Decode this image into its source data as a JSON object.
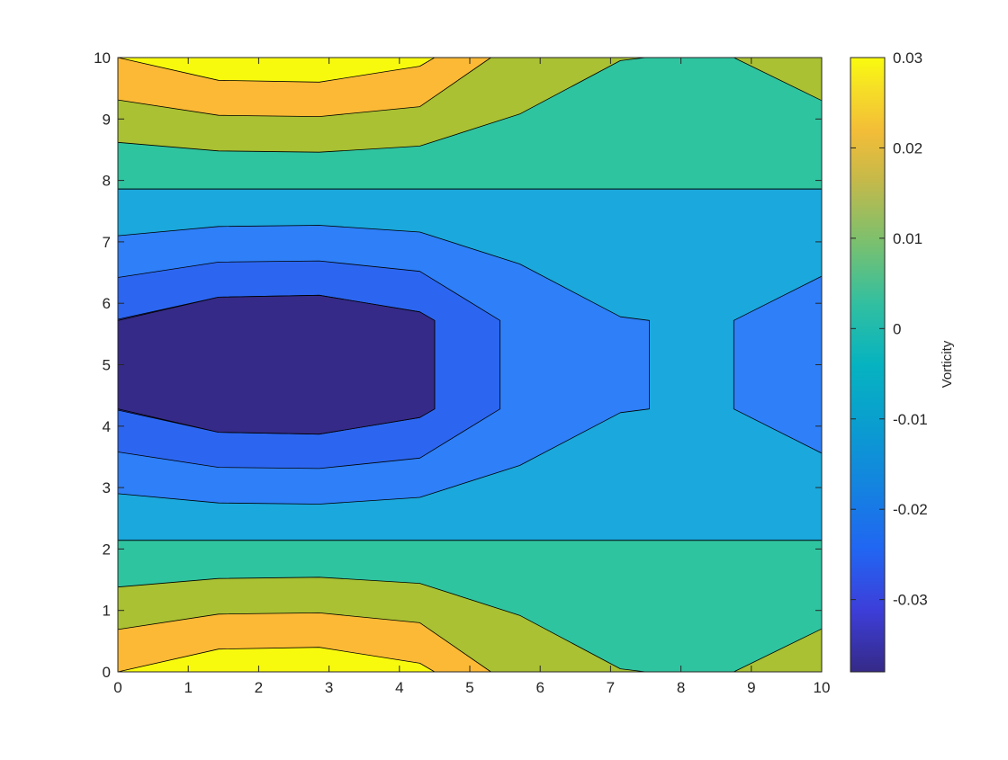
{
  "chart_data": {
    "type": "contourf",
    "title": "",
    "xlabel": "",
    "ylabel": "",
    "xlim": [
      0,
      10
    ],
    "ylim": [
      0,
      10
    ],
    "x_ticks": [
      "0",
      "1",
      "2",
      "3",
      "4",
      "5",
      "6",
      "7",
      "8",
      "9",
      "10"
    ],
    "y_ticks": [
      "0",
      "1",
      "2",
      "3",
      "4",
      "5",
      "6",
      "7",
      "8",
      "9",
      "10"
    ],
    "grid": false,
    "colorbar": {
      "label": "Vorticity",
      "range": [
        -0.038,
        0.03
      ],
      "ticks": [
        {
          "value": 0.03,
          "label": "0.03"
        },
        {
          "value": 0.02,
          "label": "0.02"
        },
        {
          "value": 0.01,
          "label": "0.01"
        },
        {
          "value": 0,
          "label": "0"
        },
        {
          "value": -0.01,
          "label": "-0.01"
        },
        {
          "value": -0.02,
          "label": "-0.02"
        },
        {
          "value": -0.03,
          "label": "-0.03"
        }
      ]
    },
    "levels": [
      {
        "name": "level-n0035",
        "value": -0.035,
        "color": "#352a87"
      },
      {
        "name": "level-n0030",
        "value": -0.03,
        "color": "#3f3fe0"
      },
      {
        "name": "level-n0025",
        "value": -0.025,
        "color": "#2c66f0"
      },
      {
        "name": "level-n0020",
        "value": -0.02,
        "color": "#2e7ff8"
      },
      {
        "name": "level-n0015",
        "value": -0.015,
        "color": "#1ba8dc"
      },
      {
        "name": "level-0000",
        "value": 0.0,
        "color": "#2fc4a0"
      },
      {
        "name": "level-0010",
        "value": 0.01,
        "color": "#a9c132"
      },
      {
        "name": "level-0020",
        "value": 0.02,
        "color": "#fbb935"
      },
      {
        "name": "level-0030",
        "value": 0.03,
        "color": "#f8fa0e"
      }
    ],
    "regions": [
      {
        "name": "region-upper-teal",
        "level": 0.0,
        "points": [
          [
            0,
            7.86
          ],
          [
            10,
            7.86
          ],
          [
            10,
            10
          ],
          [
            0,
            10
          ]
        ]
      },
      {
        "name": "region-upper-olive-left",
        "level": 0.01,
        "points": [
          [
            0,
            8.62
          ],
          [
            1.43,
            8.48
          ],
          [
            2.86,
            8.46
          ],
          [
            4.29,
            8.56
          ],
          [
            5.71,
            9.08
          ],
          [
            7.14,
            9.95
          ],
          [
            7.5,
            10
          ],
          [
            0,
            10
          ]
        ]
      },
      {
        "name": "region-upper-olive-right",
        "level": 0.01,
        "points": [
          [
            8.75,
            10
          ],
          [
            10,
            9.3
          ],
          [
            10,
            10
          ]
        ]
      },
      {
        "name": "region-upper-orange",
        "level": 0.02,
        "points": [
          [
            0,
            9.31
          ],
          [
            1.43,
            9.06
          ],
          [
            2.86,
            9.04
          ],
          [
            4.29,
            9.2
          ],
          [
            5.3,
            10
          ],
          [
            0,
            10
          ]
        ]
      },
      {
        "name": "region-upper-yellow",
        "level": 0.03,
        "points": [
          [
            0,
            10
          ],
          [
            1.43,
            9.63
          ],
          [
            2.86,
            9.6
          ],
          [
            4.29,
            9.86
          ],
          [
            4.5,
            10
          ]
        ]
      },
      {
        "name": "region-middle-cyan",
        "level": -0.015,
        "points": [
          [
            0,
            2.14
          ],
          [
            10,
            2.14
          ],
          [
            10,
            7.86
          ],
          [
            0,
            7.86
          ]
        ]
      },
      {
        "name": "region-middle-blue",
        "level": -0.02,
        "points": [
          [
            0,
            7.1
          ],
          [
            1.43,
            7.25
          ],
          [
            2.86,
            7.27
          ],
          [
            4.29,
            7.16
          ],
          [
            5.71,
            6.64
          ],
          [
            7.14,
            5.78
          ],
          [
            7.55,
            5.72
          ],
          [
            7.55,
            4.28
          ],
          [
            7.14,
            4.22
          ],
          [
            5.71,
            3.36
          ],
          [
            4.29,
            2.84
          ],
          [
            2.86,
            2.73
          ],
          [
            1.43,
            2.75
          ],
          [
            0,
            2.9
          ]
        ]
      },
      {
        "name": "region-middle-blue-right",
        "level": -0.02,
        "points": [
          [
            10,
            6.44
          ],
          [
            8.75,
            5.72
          ],
          [
            8.75,
            4.28
          ],
          [
            10,
            3.56
          ]
        ]
      },
      {
        "name": "region-middle-mid-blue",
        "level": -0.025,
        "points": [
          [
            0,
            6.42
          ],
          [
            1.43,
            6.67
          ],
          [
            2.86,
            6.69
          ],
          [
            4.29,
            6.52
          ],
          [
            5.43,
            5.72
          ],
          [
            5.43,
            4.28
          ],
          [
            4.29,
            3.48
          ],
          [
            2.86,
            3.31
          ],
          [
            1.43,
            3.33
          ],
          [
            0,
            3.58
          ]
        ]
      },
      {
        "name": "region-middle-indigo",
        "level": -0.03,
        "points": [
          [
            0,
            5.74
          ],
          [
            1.43,
            6.1
          ],
          [
            2.86,
            6.13
          ],
          [
            4.29,
            5.86
          ],
          [
            4.5,
            5.72
          ],
          [
            4.5,
            4.28
          ],
          [
            4.29,
            4.14
          ],
          [
            2.86,
            3.87
          ],
          [
            1.43,
            3.9
          ],
          [
            0,
            4.26
          ]
        ]
      },
      {
        "name": "region-middle-core",
        "level": -0.035,
        "points": [
          [
            0,
            5.72
          ],
          [
            1.43,
            6.1
          ],
          [
            2.86,
            6.13
          ],
          [
            4.29,
            5.86
          ],
          [
            4.5,
            5.72
          ],
          [
            4.5,
            4.28
          ],
          [
            4.29,
            4.14
          ],
          [
            2.86,
            3.87
          ],
          [
            1.43,
            3.9
          ],
          [
            0,
            4.28
          ]
        ]
      },
      {
        "name": "region-lower-teal",
        "level": 0.0,
        "points": [
          [
            0,
            0
          ],
          [
            10,
            0
          ],
          [
            10,
            2.14
          ],
          [
            0,
            2.14
          ]
        ]
      },
      {
        "name": "region-lower-olive-left",
        "level": 0.01,
        "points": [
          [
            0,
            1.38
          ],
          [
            1.43,
            1.52
          ],
          [
            2.86,
            1.54
          ],
          [
            4.29,
            1.44
          ],
          [
            5.71,
            0.92
          ],
          [
            7.14,
            0.05
          ],
          [
            7.5,
            0
          ],
          [
            0,
            0
          ]
        ]
      },
      {
        "name": "region-lower-olive-right",
        "level": 0.01,
        "points": [
          [
            8.75,
            0
          ],
          [
            10,
            0.7
          ],
          [
            10,
            0
          ]
        ]
      },
      {
        "name": "region-lower-orange",
        "level": 0.02,
        "points": [
          [
            0,
            0.69
          ],
          [
            1.43,
            0.94
          ],
          [
            2.86,
            0.96
          ],
          [
            4.29,
            0.8
          ],
          [
            5.3,
            0
          ],
          [
            0,
            0
          ]
        ]
      },
      {
        "name": "region-lower-yellow",
        "level": 0.03,
        "points": [
          [
            0,
            0
          ],
          [
            1.43,
            0.37
          ],
          [
            2.86,
            0.4
          ],
          [
            4.29,
            0.14
          ],
          [
            4.5,
            0
          ]
        ]
      }
    ]
  }
}
